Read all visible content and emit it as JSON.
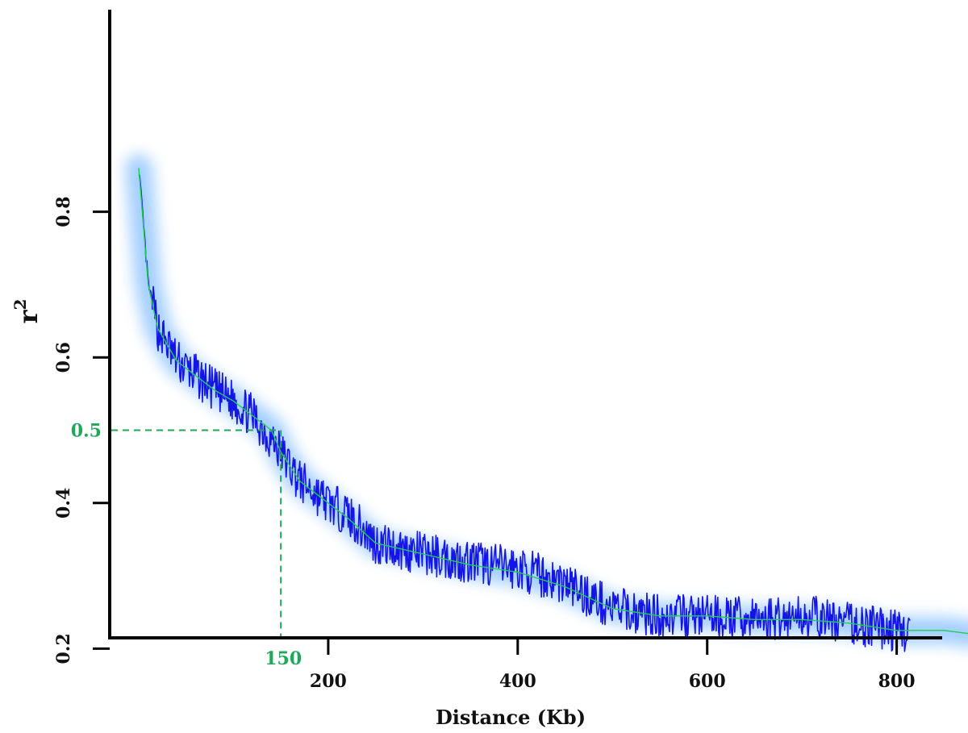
{
  "chart_data": {
    "type": "line",
    "xlabel": "Distance (Kb)",
    "ylabel_base": "r",
    "ylabel_sup": "2",
    "x_ticks": [
      "200",
      "400",
      "600",
      "800"
    ],
    "y_ticks": [
      "0.2",
      "0.4",
      "0.6",
      "0.8"
    ],
    "xlim": [
      0,
      880
    ],
    "ylim": [
      0.04,
      0.86
    ],
    "reference": {
      "x": 150,
      "y": 0.5,
      "x_label": "150",
      "y_label": "0.5",
      "color": "#1fa85a"
    },
    "series": [
      {
        "style": "noisy",
        "color": "#1414e6",
        "glow_color": "#5aa8ff",
        "x_range": [
          0,
          815
        ],
        "envelope_x": [
          0,
          10,
          20,
          40,
          60,
          80,
          100,
          120,
          150,
          170,
          200,
          220,
          250,
          300,
          350,
          400,
          450,
          500,
          550,
          600,
          650,
          700,
          750,
          800,
          815
        ],
        "envelope_y": [
          0.86,
          0.7,
          0.64,
          0.595,
          0.575,
          0.555,
          0.54,
          0.52,
          0.47,
          0.43,
          0.4,
          0.385,
          0.345,
          0.33,
          0.32,
          0.31,
          0.29,
          0.255,
          0.245,
          0.245,
          0.24,
          0.245,
          0.235,
          0.225,
          0.225
        ],
        "noise_amplitude": 0.03
      },
      {
        "style": "smooth",
        "color": "#22cc55",
        "x": [
          0,
          10,
          20,
          40,
          60,
          80,
          100,
          120,
          140,
          150,
          170,
          200,
          220,
          250,
          300,
          350,
          400,
          450,
          500,
          550,
          600,
          650,
          700,
          750,
          800,
          850,
          880
        ],
        "y": [
          0.86,
          0.7,
          0.64,
          0.595,
          0.575,
          0.555,
          0.54,
          0.52,
          0.5,
          0.47,
          0.43,
          0.4,
          0.38,
          0.345,
          0.33,
          0.315,
          0.305,
          0.285,
          0.255,
          0.245,
          0.245,
          0.24,
          0.24,
          0.235,
          0.225,
          0.225,
          0.22
        ]
      }
    ],
    "grid": false,
    "legend": "none"
  }
}
